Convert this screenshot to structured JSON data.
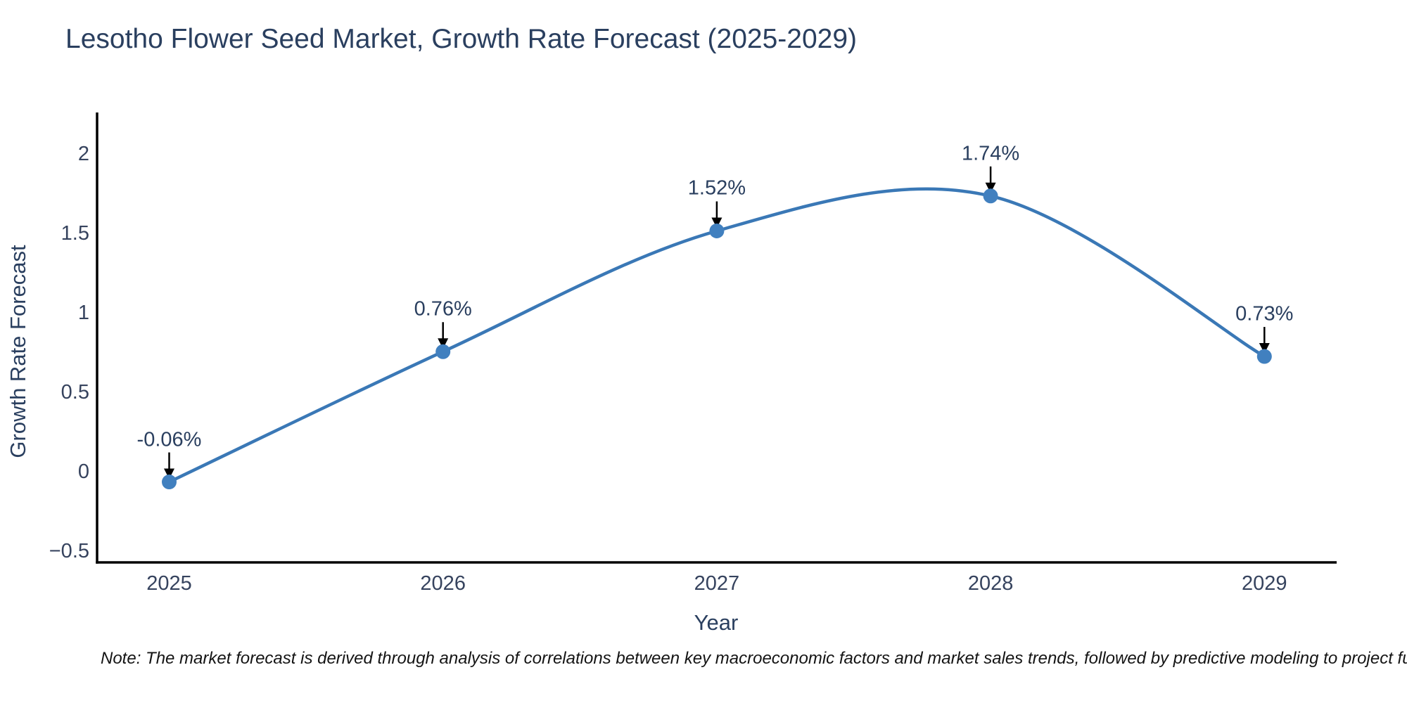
{
  "page": {
    "background_color": "#ffffff"
  },
  "chart_data": {
    "type": "line",
    "title": "Lesotho Flower Seed Market, Growth Rate Forecast (2025-2029)",
    "xlabel": "Year",
    "ylabel": "Growth Rate Forecast",
    "x": [
      2025,
      2026,
      2027,
      2028,
      2029
    ],
    "series": [
      {
        "name": "Growth Rate Forecast",
        "values": [
          -0.06,
          0.76,
          1.52,
          1.74,
          0.73
        ]
      }
    ],
    "point_labels": [
      "-0.06%",
      "0.76%",
      "1.52%",
      "1.74%",
      "0.73%"
    ],
    "xticks": [
      "2025",
      "2026",
      "2027",
      "2028",
      "2029"
    ],
    "yticks": [
      "2",
      "1.5",
      "1",
      "0.5",
      "0",
      "−0.5"
    ],
    "ytick_values": [
      2,
      1.5,
      1,
      0.5,
      0,
      -0.5
    ],
    "ylim": [
      -0.57,
      2.27
    ],
    "line_shape": "spline",
    "grid": false,
    "legend_position": "none",
    "annotations_have_arrows": true,
    "colors": {
      "line": "#3a78b6",
      "marker": "#4180bf",
      "axis": "#000000",
      "arrow": "#000000",
      "title_text": "#2a3f5f",
      "tick_text": "#36435e",
      "annotation_text": "#2a3f5f"
    }
  },
  "note": {
    "text": "Note: The market forecast is derived through analysis of correlations between key macroeconomic factors and market sales trends, followed by predictive modeling to project future sa"
  }
}
